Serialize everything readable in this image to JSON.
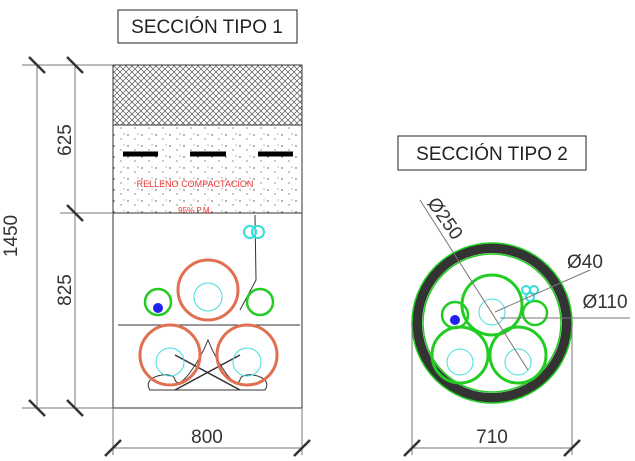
{
  "section_1": {
    "title": "SECCIÓN TIPO 1",
    "fill_label": "RELLENO COMPACTACION",
    "fill_spec": "95% P.M.",
    "dim_total": "1450",
    "dim_top": "625",
    "dim_bottom": "825",
    "dim_width": "800"
  },
  "section_2": {
    "title": "SECCIÓN TIPO 2",
    "dim_outer": "Ø250",
    "dim_small": "Ø40",
    "dim_pipe": "Ø110",
    "dim_width": "710"
  }
}
